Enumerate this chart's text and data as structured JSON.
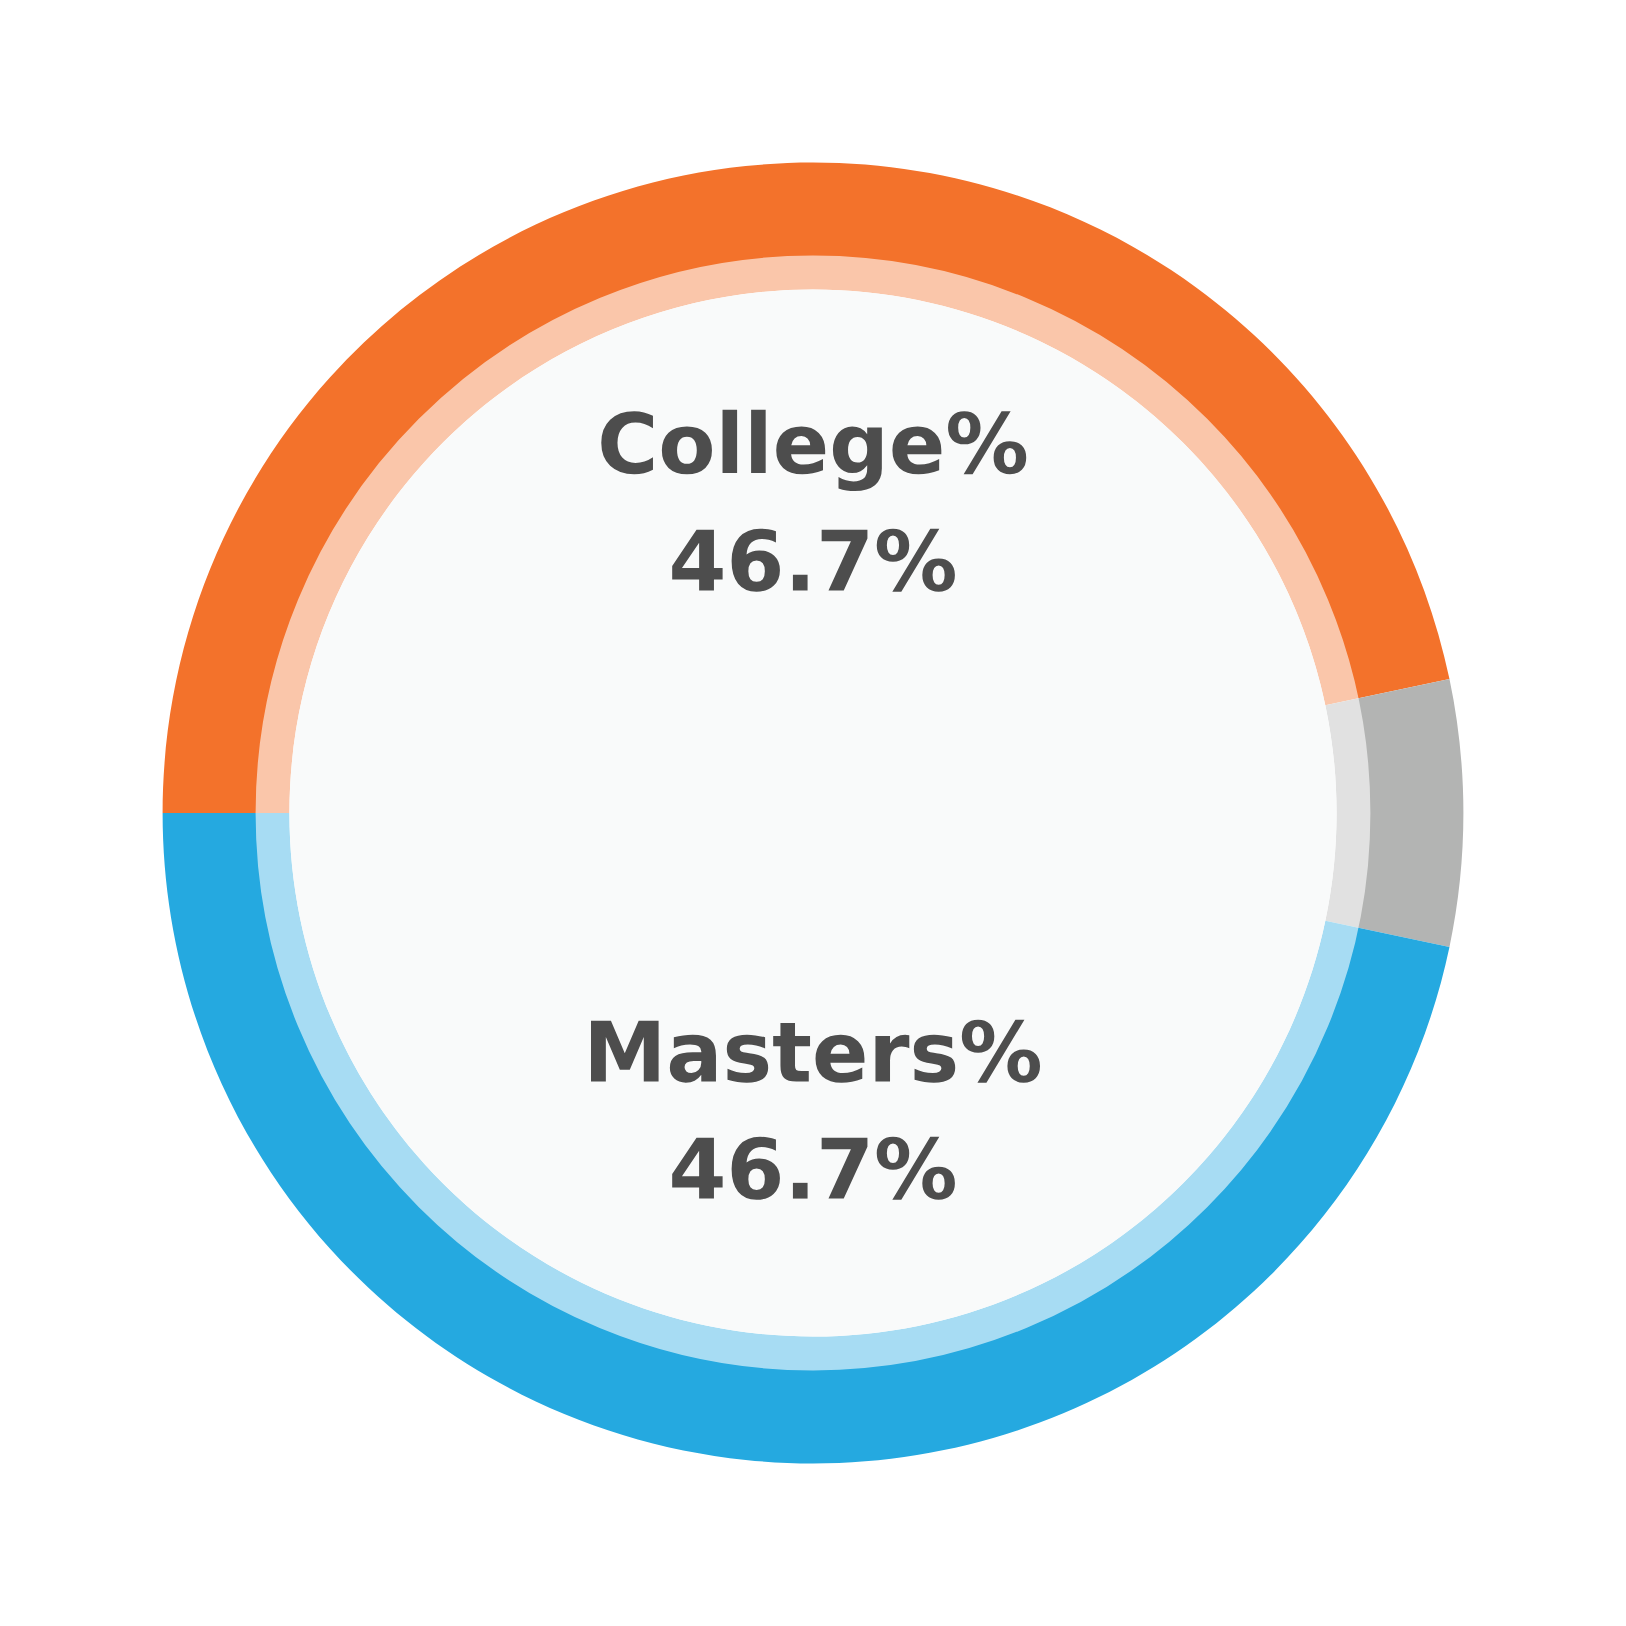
{
  "chart_data": {
    "type": "donut",
    "categories": [
      "College%",
      null,
      "Masters%"
    ],
    "values": [
      46.7,
      6.6,
      46.7
    ],
    "value_labels": [
      "46.7%",
      null,
      "46.7%"
    ],
    "colors": [
      "#f3722b",
      "#b3b4b3",
      "#25a9e0"
    ],
    "legend": false
  }
}
